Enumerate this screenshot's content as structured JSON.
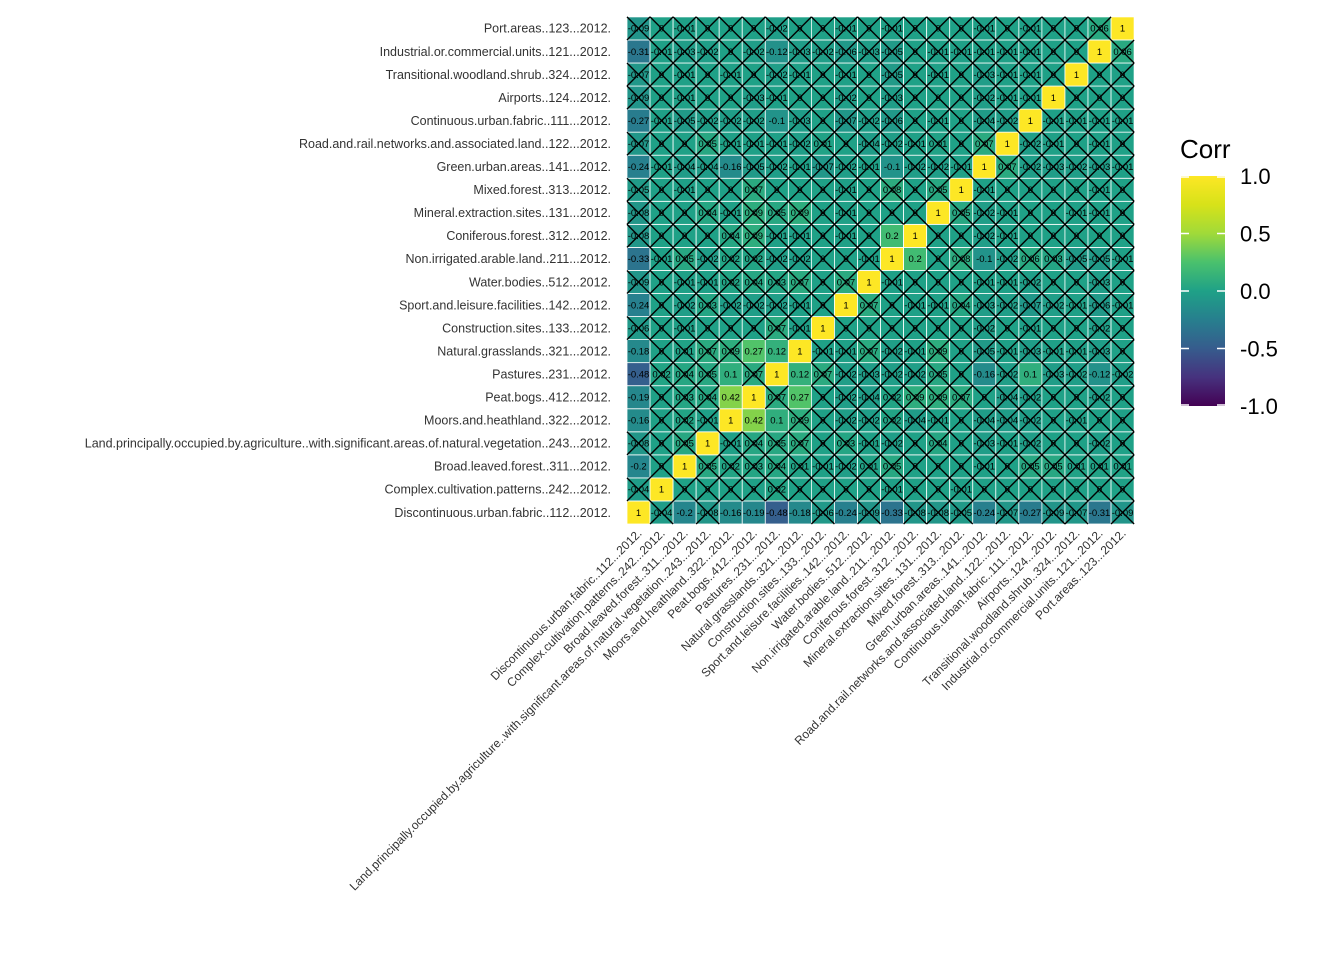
{
  "chart_data": {
    "type": "heatmap",
    "title": "",
    "xlabel": "",
    "ylabel": "",
    "labels": [
      "Discontinuous.urban.fabric..112...2012.",
      "Complex.cultivation.patterns..242...2012.",
      "Broad.leaved.forest..311...2012.",
      "Land.principally.occupied.by.agriculture..with.significant.areas.of.natural.vegetation..243...2012.",
      "Moors.and.heathland..322...2012.",
      "Peat.bogs..412...2012.",
      "Pastures..231...2012.",
      "Natural.grasslands..321...2012.",
      "Construction.sites..133...2012.",
      "Sport.and.leisure.facilities..142...2012.",
      "Water.bodies..512...2012.",
      "Non.irrigated.arable.land..211...2012.",
      "Coniferous.forest..312...2012.",
      "Mineral.extraction.sites..131...2012.",
      "Mixed.forest..313...2012.",
      "Green.urban.areas..141...2012.",
      "Road.and.rail.networks.and.associated.land..122...2012.",
      "Continuous.urban.fabric..111...2012.",
      "Airports..124...2012.",
      "Transitional.woodland.shrub..324...2012.",
      "Industrial.or.commercial.units..121...2012.",
      "Port.areas..123...2012."
    ],
    "values": [
      [
        1,
        -0.04,
        -0.2,
        -0.08,
        -0.16,
        -0.19,
        -0.48,
        -0.18,
        -0.06,
        -0.24,
        -0.09,
        -0.33,
        -0.08,
        -0.08,
        -0.05,
        -0.24,
        -0.07,
        -0.27,
        -0.09,
        -0.07,
        -0.31,
        -0.09
      ],
      [
        -0.04,
        1,
        0,
        0,
        0,
        0,
        0.02,
        0,
        0,
        0,
        0,
        -0.01,
        0,
        0,
        -0.01,
        0,
        0,
        0,
        0,
        0,
        0,
        0
      ],
      [
        -0.2,
        0,
        1,
        0.05,
        0.02,
        0.03,
        0.04,
        0.01,
        -0.01,
        -0.02,
        0.01,
        0.05,
        0,
        0,
        0,
        -0.01,
        0,
        0.05,
        0.05,
        0.01,
        0.01,
        0.01
      ],
      [
        -0.08,
        0,
        0.05,
        1,
        -0.01,
        0.04,
        0.05,
        0.07,
        0,
        0.03,
        -0.01,
        -0.02,
        0,
        0.04,
        0,
        -0.03,
        -0.01,
        -0.02,
        0,
        0,
        -0.02,
        0
      ],
      [
        -0.16,
        0,
        0.02,
        -0.01,
        1,
        0.42,
        0.1,
        0.09,
        0,
        -0.02,
        -0.02,
        0.02,
        -0.04,
        -0.01,
        0,
        -0.04,
        -0.04,
        -0.02,
        0,
        -0.01,
        0,
        0
      ],
      [
        -0.19,
        0,
        0.03,
        0.04,
        0.42,
        1,
        0.07,
        0.27,
        0,
        -0.02,
        -0.04,
        0.02,
        0.09,
        0.09,
        0.07,
        0,
        -0.04,
        -0.02,
        0,
        0,
        -0.02,
        0
      ],
      [
        -0.48,
        0.02,
        0.04,
        0.05,
        0.1,
        0.07,
        1,
        0.12,
        0.07,
        -0.02,
        -0.03,
        -0.02,
        -0.02,
        0.05,
        0,
        -0.16,
        -0.02,
        0.1,
        -0.03,
        -0.02,
        -0.12,
        -0.02
      ],
      [
        -0.18,
        0,
        0.01,
        0.07,
        0.09,
        0.27,
        0.12,
        1,
        -0.01,
        -0.01,
        0.07,
        -0.02,
        -0.01,
        0.09,
        0,
        -0.05,
        -0.01,
        -0.03,
        -0.01,
        -0.01,
        -0.03,
        0
      ],
      [
        -0.06,
        0,
        -0.01,
        0,
        0,
        0,
        0.07,
        -0.01,
        1,
        0,
        0,
        0,
        0,
        0,
        0,
        -0.02,
        0,
        -0.01,
        0,
        0,
        -0.02,
        0
      ],
      [
        -0.24,
        0,
        -0.02,
        0.03,
        -0.02,
        -0.02,
        -0.02,
        -0.01,
        0,
        1,
        0.07,
        0,
        -0.01,
        -0.01,
        0.04,
        -0.03,
        -0.02,
        -0.07,
        -0.02,
        -0.01,
        -0.06,
        -0.01
      ],
      [
        -0.09,
        0,
        -0.01,
        -0.01,
        0.02,
        0.04,
        0.03,
        0.07,
        0,
        0.07,
        1,
        -0.01,
        0,
        0,
        0,
        -0.01,
        -0.01,
        -0.02,
        0,
        0,
        -0.03,
        0
      ],
      [
        -0.33,
        -0.01,
        0.05,
        -0.02,
        0.02,
        0.02,
        -0.02,
        -0.02,
        0,
        0,
        -0.01,
        1,
        0.2,
        0,
        0.08,
        -0.1,
        -0.02,
        0.06,
        0.03,
        -0.05,
        -0.05,
        -0.01
      ],
      [
        -0.08,
        0,
        0,
        0,
        0.04,
        0.09,
        -0.01,
        -0.01,
        0,
        -0.01,
        0,
        0.2,
        1,
        0,
        0,
        -0.02,
        -0.01,
        0,
        0,
        0,
        0,
        0
      ],
      [
        -0.08,
        0,
        0,
        0.04,
        -0.01,
        0.09,
        0.05,
        0.09,
        0,
        -0.01,
        0,
        0,
        0,
        1,
        0.05,
        -0.02,
        -0.01,
        0,
        0,
        -0.01,
        -0.01,
        0
      ],
      [
        -0.05,
        0,
        -0.01,
        0,
        0,
        0.07,
        0,
        0,
        0,
        -0.01,
        0,
        0.08,
        0,
        0.05,
        1,
        -0.01,
        0,
        0,
        0,
        0,
        -0.01,
        0
      ],
      [
        -0.24,
        -0.01,
        -0.04,
        -0.04,
        -0.16,
        -0.05,
        -0.02,
        -0.01,
        -0.07,
        -0.02,
        -0.01,
        -0.1,
        -0.02,
        -0.02,
        -0.01,
        1,
        0.07,
        -0.02,
        -0.03,
        -0.02,
        -0.03,
        -0.01
      ],
      [
        -0.07,
        0,
        0,
        0.05,
        -0.01,
        -0.01,
        -0.01,
        -0.02,
        0.01,
        0,
        -0.04,
        -0.02,
        -0.01,
        0.01,
        0,
        0.07,
        1,
        -0.02,
        -0.01,
        0,
        -0.01,
        0
      ],
      [
        -0.27,
        -0.01,
        -0.05,
        -0.02,
        -0.02,
        -0.02,
        -0.1,
        -0.03,
        0,
        -0.07,
        -0.02,
        -0.06,
        0,
        -0.01,
        0,
        -0.04,
        -0.02,
        1,
        -0.01,
        -0.01,
        -0.01,
        -0.01
      ],
      [
        -0.09,
        0,
        -0.01,
        0,
        0,
        -0.03,
        -0.01,
        0,
        0,
        -0.02,
        0,
        -0.03,
        0,
        0,
        0,
        -0.02,
        -0.01,
        -0.01,
        1,
        0,
        0,
        0
      ],
      [
        -0.07,
        0,
        -0.01,
        0,
        -0.01,
        0,
        -0.02,
        -0.01,
        0,
        -0.01,
        0,
        -0.05,
        0,
        -0.01,
        0,
        -0.03,
        -0.01,
        -0.01,
        0,
        1,
        0,
        0
      ],
      [
        -0.31,
        -0.01,
        -0.03,
        -0.02,
        0,
        -0.02,
        -0.12,
        -0.03,
        -0.02,
        -0.06,
        -0.03,
        -0.05,
        0,
        -0.01,
        -0.01,
        -0.01,
        -0.01,
        -0.01,
        0,
        0,
        1,
        0.06
      ],
      [
        -0.09,
        0,
        -0.01,
        0,
        0,
        0,
        -0.02,
        0,
        0,
        -0.01,
        0,
        -0.01,
        0,
        0,
        0,
        -0.01,
        0,
        -0.01,
        0,
        0,
        0.06,
        1
      ]
    ],
    "crossed_out": "insignificant correlations marked with an X",
    "color_scale": "viridis",
    "legend": {
      "title": "Corr",
      "ticks": [
        "1.0",
        "0.5",
        "0.0",
        "-0.5",
        "-1.0"
      ],
      "range": [
        -1,
        1
      ],
      "position": "right"
    }
  }
}
